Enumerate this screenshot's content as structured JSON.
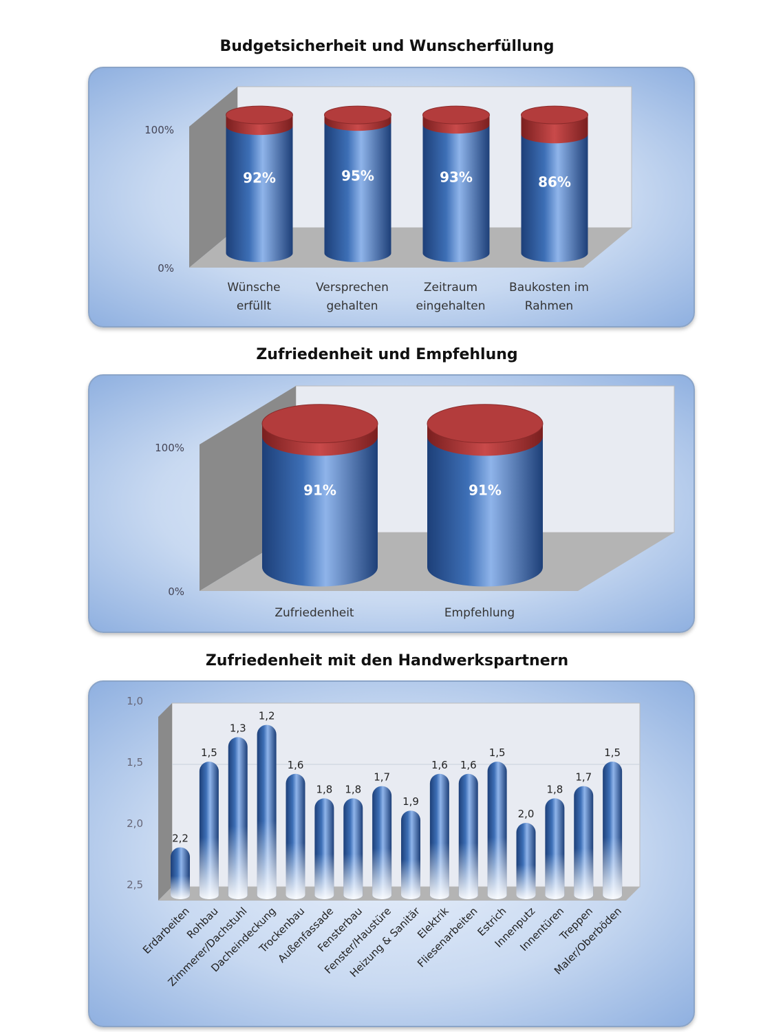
{
  "chart_data": [
    {
      "type": "bar",
      "title": "Budgetsicherheit und Wunscherfüllung",
      "categories": [
        [
          "Wünsche",
          "erfüllt"
        ],
        [
          "Versprechen",
          "gehalten"
        ],
        [
          "Zeitraum",
          "eingehalten"
        ],
        [
          "Baukosten im",
          "Rahmen"
        ]
      ],
      "values": [
        92,
        95,
        93,
        86
      ],
      "labels": [
        "92%",
        "95%",
        "93%",
        "86%"
      ],
      "yticks": [
        "0%",
        "100%"
      ],
      "ylim": [
        0,
        100
      ],
      "colors": {
        "bar": "#3d6fb6",
        "remainder": "#b03a3a"
      }
    },
    {
      "type": "bar",
      "title": "Zufriedenheit und Empfehlung",
      "categories": [
        [
          "Zufriedenheit"
        ],
        [
          "Empfehlung"
        ]
      ],
      "values": [
        91,
        91
      ],
      "labels": [
        "91%",
        "91%"
      ],
      "yticks": [
        "0%",
        "100%"
      ],
      "ylim": [
        0,
        100
      ],
      "colors": {
        "bar": "#3d6fb6",
        "remainder": "#b03a3a"
      }
    },
    {
      "type": "bar",
      "title": "Zufriedenheit mit den Handwerkspartnern",
      "categories": [
        "Erdarbeiten",
        "Rohbau",
        "Zimmerer/Dachstuhl",
        "Dacheindeckung",
        "Trockenbau",
        "Außenfassade",
        "Fensterbau",
        "Fenster/Haustüre",
        "Heizung & Sanitär",
        "Elektrik",
        "Fliesenarbeiten",
        "Estrich",
        "Innenputz",
        "Innentüren",
        "Treppen",
        "Maler/Oberböden"
      ],
      "values": [
        2.2,
        1.5,
        1.3,
        1.2,
        1.6,
        1.8,
        1.8,
        1.7,
        1.9,
        1.6,
        1.6,
        1.5,
        2.0,
        1.8,
        1.7,
        1.5
      ],
      "labels": [
        "2,2",
        "1,5",
        "1,3",
        "1,2",
        "1,6",
        "1,8",
        "1,8",
        "1,7",
        "1,9",
        "1,6",
        "1,6",
        "1,5",
        "2,0",
        "1,8",
        "1,7",
        "1,5"
      ],
      "yticks": [
        "1,0",
        "1,5",
        "2,0",
        "2,5"
      ],
      "ylim": [
        2.5,
        1.0
      ],
      "inverted_axis": true,
      "colors": {
        "bar": "#3d6fb6"
      }
    }
  ]
}
